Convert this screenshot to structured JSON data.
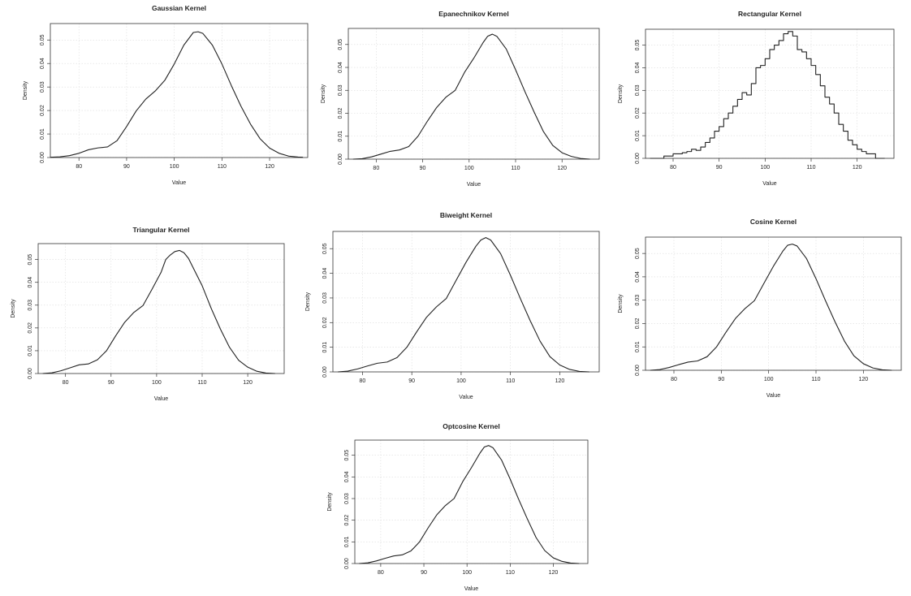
{
  "chart_data": [
    {
      "type": "line",
      "title": "Gaussian Kernel",
      "xlabel": "Value",
      "ylabel": "Density",
      "xlim": [
        74,
        128
      ],
      "ylim": [
        0,
        0.057
      ],
      "xticks": [
        "80",
        "90",
        "100",
        "110",
        "120"
      ],
      "yticks": [
        "0.00",
        "0.01",
        "0.02",
        "0.03",
        "0.04",
        "0.05"
      ],
      "grid": true,
      "x": [
        74,
        76,
        78,
        80,
        82,
        84,
        86,
        88,
        90,
        92,
        94,
        96,
        98,
        100,
        102,
        104,
        105,
        106,
        108,
        110,
        112,
        114,
        116,
        118,
        120,
        122,
        124,
        126,
        127
      ],
      "y": [
        0.0001,
        0.0003,
        0.0008,
        0.0018,
        0.0033,
        0.0041,
        0.0045,
        0.0072,
        0.0132,
        0.0198,
        0.0248,
        0.0283,
        0.0328,
        0.0398,
        0.0478,
        0.0532,
        0.0535,
        0.0528,
        0.0478,
        0.0398,
        0.0305,
        0.0218,
        0.0142,
        0.008,
        0.004,
        0.0018,
        0.0006,
        0.0002,
        0.0001
      ]
    },
    {
      "type": "line",
      "title": "Epanechnikov Kernel",
      "xlabel": "Value",
      "ylabel": "Density",
      "xlim": [
        74,
        128
      ],
      "ylim": [
        0,
        0.057
      ],
      "xticks": [
        "80",
        "90",
        "100",
        "110",
        "120"
      ],
      "yticks": [
        "0.00",
        "0.01",
        "0.02",
        "0.03",
        "0.04",
        "0.05"
      ],
      "grid": true,
      "x": [
        75,
        77,
        79,
        81,
        83,
        85,
        87,
        89,
        91,
        93,
        95,
        97,
        99,
        101,
        103,
        104,
        105,
        106,
        108,
        110,
        112,
        114,
        116,
        118,
        120,
        122,
        124,
        126
      ],
      "y": [
        0,
        0.0002,
        0.001,
        0.0022,
        0.0034,
        0.004,
        0.0055,
        0.01,
        0.0165,
        0.0225,
        0.027,
        0.03,
        0.0378,
        0.044,
        0.0508,
        0.0536,
        0.0545,
        0.0535,
        0.048,
        0.039,
        0.0295,
        0.0205,
        0.012,
        0.006,
        0.0028,
        0.0012,
        0.0003,
        0
      ]
    },
    {
      "type": "line",
      "title": "Rectangular Kernel",
      "xlabel": "Value",
      "ylabel": "Density",
      "xlim": [
        74,
        128
      ],
      "ylim": [
        0,
        0.057
      ],
      "xticks": [
        "80",
        "90",
        "100",
        "110",
        "120"
      ],
      "yticks": [
        "0.00",
        "0.01",
        "0.02",
        "0.03",
        "0.04",
        "0.05"
      ],
      "grid": true,
      "step": true,
      "x": [
        75,
        77,
        78,
        79,
        80,
        81,
        82,
        83,
        84,
        85,
        86,
        87,
        88,
        89,
        90,
        91,
        92,
        93,
        94,
        95,
        96,
        97,
        98,
        99,
        100,
        101,
        102,
        103,
        104,
        105,
        106,
        107,
        108,
        109,
        110,
        111,
        112,
        113,
        114,
        115,
        116,
        117,
        118,
        119,
        120,
        121,
        122,
        124,
        126
      ],
      "y": [
        0,
        0,
        0.001,
        0.001,
        0.002,
        0.002,
        0.0025,
        0.003,
        0.004,
        0.0035,
        0.005,
        0.007,
        0.009,
        0.012,
        0.014,
        0.0175,
        0.02,
        0.023,
        0.026,
        0.029,
        0.028,
        0.033,
        0.04,
        0.041,
        0.044,
        0.048,
        0.05,
        0.052,
        0.055,
        0.056,
        0.054,
        0.048,
        0.047,
        0.044,
        0.041,
        0.037,
        0.032,
        0.027,
        0.024,
        0.02,
        0.015,
        0.012,
        0.008,
        0.006,
        0.004,
        0.003,
        0.002,
        0,
        0
      ]
    },
    {
      "type": "line",
      "title": "Triangular Kernel",
      "xlabel": "Value",
      "ylabel": "Density",
      "xlim": [
        74,
        128
      ],
      "ylim": [
        0,
        0.057
      ],
      "xticks": [
        "80",
        "90",
        "100",
        "110",
        "120"
      ],
      "yticks": [
        "0.00",
        "0.01",
        "0.02",
        "0.03",
        "0.04",
        "0.05"
      ],
      "grid": true,
      "x": [
        75,
        77,
        79,
        81,
        83,
        85,
        87,
        89,
        91,
        93,
        95,
        97,
        99,
        101,
        102,
        103,
        104,
        105,
        106,
        107,
        108,
        110,
        112,
        114,
        116,
        118,
        120,
        122,
        124,
        126
      ],
      "y": [
        0,
        0.0003,
        0.0012,
        0.0025,
        0.0038,
        0.0042,
        0.006,
        0.01,
        0.0165,
        0.0225,
        0.0268,
        0.0298,
        0.037,
        0.0445,
        0.05,
        0.052,
        0.0535,
        0.054,
        0.053,
        0.0505,
        0.0465,
        0.0385,
        0.0285,
        0.0195,
        0.0115,
        0.0058,
        0.0028,
        0.001,
        0.0002,
        0
      ]
    },
    {
      "type": "line",
      "title": "Biweight Kernel",
      "xlabel": "Value",
      "ylabel": "Density",
      "xlim": [
        74,
        128
      ],
      "ylim": [
        0,
        0.057
      ],
      "xticks": [
        "80",
        "90",
        "100",
        "110",
        "120"
      ],
      "yticks": [
        "0.00",
        "0.01",
        "0.02",
        "0.03",
        "0.04",
        "0.05"
      ],
      "grid": true,
      "x": [
        75,
        77,
        79,
        81,
        83,
        85,
        87,
        89,
        91,
        93,
        95,
        97,
        99,
        101,
        103,
        104,
        105,
        106,
        108,
        110,
        112,
        114,
        116,
        118,
        120,
        122,
        124,
        126
      ],
      "y": [
        0,
        0.0003,
        0.0012,
        0.0024,
        0.0035,
        0.004,
        0.0058,
        0.01,
        0.0163,
        0.0222,
        0.0264,
        0.0298,
        0.0372,
        0.0445,
        0.051,
        0.0535,
        0.0545,
        0.0535,
        0.048,
        0.0392,
        0.0298,
        0.0208,
        0.0125,
        0.0062,
        0.0028,
        0.001,
        0.0002,
        0
      ]
    },
    {
      "type": "line",
      "title": "Cosine Kernel",
      "xlabel": "Value",
      "ylabel": "Density",
      "xlim": [
        74,
        128
      ],
      "ylim": [
        0,
        0.057
      ],
      "xticks": [
        "80",
        "90",
        "100",
        "110",
        "120"
      ],
      "yticks": [
        "0.00",
        "0.01",
        "0.02",
        "0.03",
        "0.04",
        "0.05"
      ],
      "grid": true,
      "x": [
        75,
        77,
        79,
        81,
        83,
        85,
        87,
        89,
        91,
        93,
        95,
        97,
        99,
        101,
        103,
        104,
        105,
        106,
        108,
        110,
        112,
        114,
        116,
        118,
        120,
        122,
        124,
        126
      ],
      "y": [
        0,
        0.0003,
        0.0012,
        0.0024,
        0.0035,
        0.004,
        0.0058,
        0.01,
        0.0163,
        0.0222,
        0.0264,
        0.0298,
        0.0372,
        0.0445,
        0.051,
        0.0535,
        0.054,
        0.0532,
        0.0478,
        0.0392,
        0.0298,
        0.0208,
        0.0125,
        0.0062,
        0.0028,
        0.001,
        0.0002,
        0
      ]
    },
    {
      "type": "line",
      "title": "Optcosine Kernel",
      "xlabel": "Value",
      "ylabel": "Density",
      "xlim": [
        74,
        128
      ],
      "ylim": [
        0,
        0.057
      ],
      "xticks": [
        "80",
        "90",
        "100",
        "110",
        "120"
      ],
      "yticks": [
        "0.00",
        "0.01",
        "0.02",
        "0.03",
        "0.04",
        "0.05"
      ],
      "grid": true,
      "x": [
        75,
        77,
        79,
        81,
        83,
        85,
        87,
        89,
        91,
        93,
        95,
        97,
        99,
        101,
        103,
        104,
        105,
        106,
        108,
        110,
        112,
        114,
        116,
        118,
        120,
        122,
        124,
        126
      ],
      "y": [
        0,
        0.0003,
        0.0012,
        0.0024,
        0.0035,
        0.004,
        0.0058,
        0.01,
        0.0165,
        0.0225,
        0.0268,
        0.03,
        0.0378,
        0.0442,
        0.051,
        0.0538,
        0.0545,
        0.0535,
        0.0478,
        0.039,
        0.0295,
        0.0205,
        0.012,
        0.006,
        0.0026,
        0.001,
        0.0002,
        0
      ]
    }
  ]
}
